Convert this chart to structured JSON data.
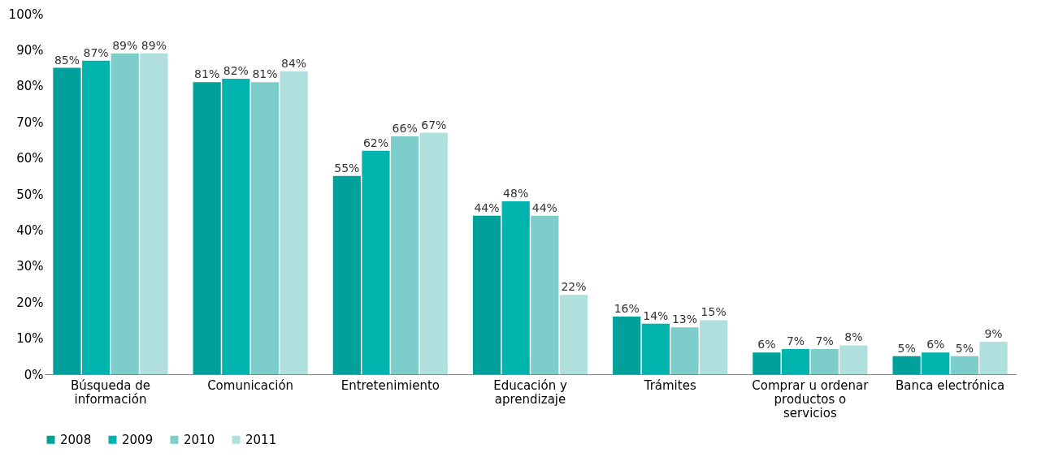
{
  "chart_data": {
    "type": "bar",
    "categories": [
      "Búsqueda de información",
      "Comunicación",
      "Entretenimiento",
      "Educación y aprendizaje",
      "Trámites",
      "Comprar u ordenar productos o servicios",
      "Banca electrónica"
    ],
    "series": [
      {
        "name": "2008",
        "color": "#00a19a",
        "values": [
          85,
          81,
          55,
          44,
          16,
          6,
          5
        ],
        "value_labels": [
          "85%",
          "81%",
          "55%",
          "44%",
          "16%",
          "6%",
          "5%"
        ]
      },
      {
        "name": "2009",
        "color": "#00b4ae",
        "values": [
          87,
          82,
          62,
          48,
          14,
          7,
          6
        ],
        "value_labels": [
          "87%",
          "82%",
          "62%",
          "48%",
          "14%",
          "7%",
          "6%"
        ]
      },
      {
        "name": "2010",
        "color": "#7dceca",
        "values": [
          89,
          81,
          66,
          44,
          13,
          7,
          5
        ],
        "value_labels": [
          "89%",
          "81%",
          "66%",
          "44%",
          "13%",
          "7%",
          "5%"
        ]
      },
      {
        "name": "2011",
        "color": "#b0e0de",
        "values": [
          89,
          84,
          67,
          22,
          15,
          8,
          9
        ],
        "value_labels": [
          "89%",
          "84%",
          "67%",
          "22%",
          "15%",
          "8%",
          "9%"
        ]
      }
    ],
    "ylim": [
      0,
      100
    ],
    "yticks": [
      {
        "value": 0,
        "label": "0%"
      },
      {
        "value": 10,
        "label": "10%"
      },
      {
        "value": 20,
        "label": "20%"
      },
      {
        "value": 30,
        "label": "30%"
      },
      {
        "value": 40,
        "label": "40%"
      },
      {
        "value": 50,
        "label": "50%"
      },
      {
        "value": 60,
        "label": "60%"
      },
      {
        "value": 70,
        "label": "70%"
      },
      {
        "value": 80,
        "label": "80%"
      },
      {
        "value": 90,
        "label": "90%"
      },
      {
        "value": 100,
        "label": "100%"
      }
    ],
    "grid": false,
    "legend": "bottom"
  }
}
